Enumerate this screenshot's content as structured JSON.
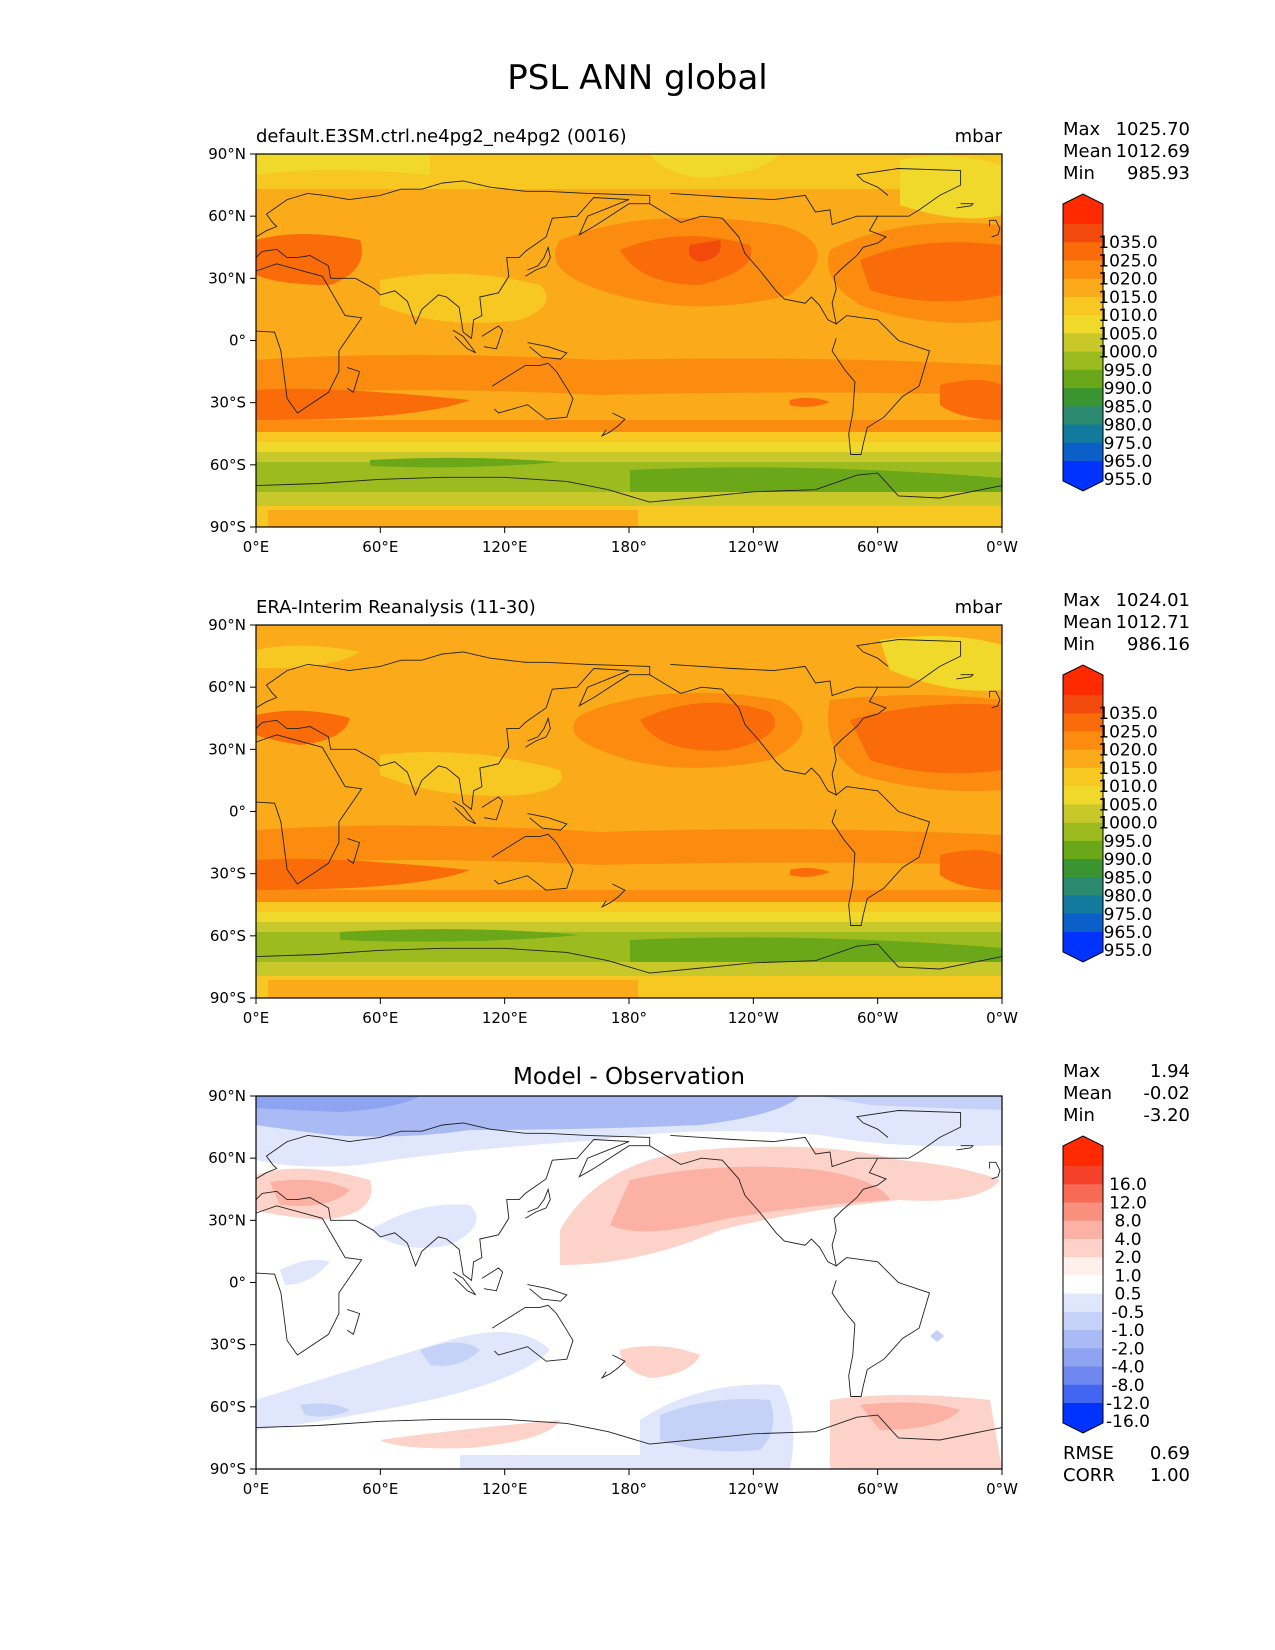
{
  "title": "PSL ANN global",
  "panels": [
    {
      "id": "model",
      "title_left": "default.E3SM.ctrl.ne4pg2_ne4pg2 (0016)",
      "title_center": "",
      "units": "mbar",
      "stats": [
        {
          "label": "Max",
          "value": "1025.70"
        },
        {
          "label": "Mean",
          "value": "1012.69"
        },
        {
          "label": "Min",
          "value": "985.93"
        }
      ],
      "colorbar_levels": [
        "1035.0",
        "1025.0",
        "1020.0",
        "1015.0",
        "1010.0",
        "1005.0",
        "1000.0",
        "995.0",
        "990.0",
        "985.0",
        "980.0",
        "975.0",
        "965.0",
        "955.0"
      ],
      "colorbar_colors": [
        "#ff2a00",
        "#f24a0c",
        "#fa6c0a",
        "#fb8c10",
        "#fbaa1a",
        "#f7c822",
        "#f0d92a",
        "#c9c82a",
        "#9cbb1e",
        "#6aa81a",
        "#3a9430",
        "#2b8a70",
        "#127a9c",
        "#0b5fc8",
        "#0033ff"
      ],
      "extra_stats": []
    },
    {
      "id": "obs",
      "title_left": "ERA-Interim Reanalysis (11-30)",
      "title_center": "",
      "units": "mbar",
      "stats": [
        {
          "label": "Max",
          "value": "1024.01"
        },
        {
          "label": "Mean",
          "value": "1012.71"
        },
        {
          "label": "Min",
          "value": "986.16"
        }
      ],
      "colorbar_levels": [
        "1035.0",
        "1025.0",
        "1020.0",
        "1015.0",
        "1010.0",
        "1005.0",
        "1000.0",
        "995.0",
        "990.0",
        "985.0",
        "980.0",
        "975.0",
        "965.0",
        "955.0"
      ],
      "colorbar_colors": [
        "#ff2a00",
        "#f24a0c",
        "#fa6c0a",
        "#fb8c10",
        "#fbaa1a",
        "#f7c822",
        "#f0d92a",
        "#c9c82a",
        "#9cbb1e",
        "#6aa81a",
        "#3a9430",
        "#2b8a70",
        "#127a9c",
        "#0b5fc8",
        "#0033ff"
      ],
      "extra_stats": []
    },
    {
      "id": "diff",
      "title_left": "",
      "title_center": "Model - Observation",
      "units": "",
      "stats": [
        {
          "label": "Max",
          "value": "1.94"
        },
        {
          "label": "Mean",
          "value": "-0.02"
        },
        {
          "label": "Min",
          "value": "-3.20"
        }
      ],
      "colorbar_levels": [
        "16.0",
        "12.0",
        "8.0",
        "4.0",
        "2.0",
        "1.0",
        "0.5",
        "-0.5",
        "-1.0",
        "-2.0",
        "-4.0",
        "-8.0",
        "-12.0",
        "-16.0"
      ],
      "colorbar_colors": [
        "#ff2a00",
        "#f5402a",
        "#f76b55",
        "#f9907e",
        "#fbb1a4",
        "#fdd2c9",
        "#fff0ec",
        "#ffffff",
        "#e0e6fb",
        "#c6d1f8",
        "#a9baf5",
        "#8ea3f2",
        "#6f88ef",
        "#4266f2",
        "#0033ff"
      ],
      "extra_stats": [
        {
          "label": "RMSE",
          "value": "0.69"
        },
        {
          "label": "CORR",
          "value": "1.00"
        }
      ]
    }
  ],
  "x_tick_labels": [
    "0°E",
    "60°E",
    "120°E",
    "180°",
    "120°W",
    "60°W",
    "0°W"
  ],
  "y_tick_labels": [
    "90°N",
    "60°N",
    "30°N",
    "0°",
    "30°S",
    "60°S",
    "90°S"
  ]
}
